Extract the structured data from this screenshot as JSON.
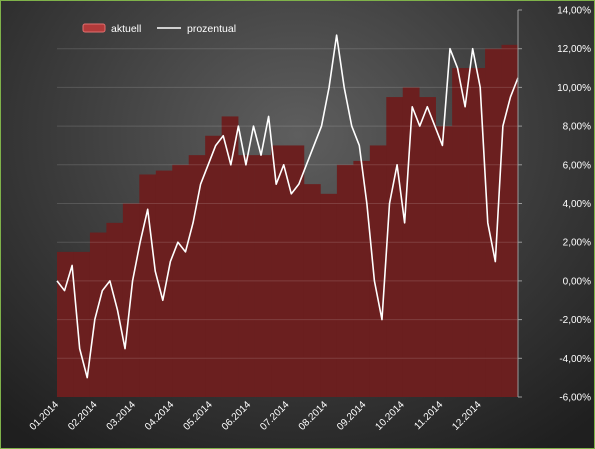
{
  "chart_data": {
    "type": "bar+line",
    "legend_placement": "top-left",
    "grid": true,
    "y_right": {
      "min": -6,
      "max": 14,
      "step": 2,
      "tick_labels": [
        "-6,00%",
        "-4,00%",
        "-2,00%",
        "0,00%",
        "2,00%",
        "4,00%",
        "6,00%",
        "8,00%",
        "10,00%",
        "12,00%",
        "14,00%"
      ]
    },
    "x_tick_labels": [
      "01.2014",
      "02.2014",
      "03.2014",
      "04.2014",
      "05.2014",
      "06.2014",
      "07.2014",
      "08.2014",
      "09.2014",
      "10.2014",
      "11.2014",
      "12.2014"
    ],
    "series": [
      {
        "name": "aktuell",
        "kind": "bar",
        "color": "#6b1f1f",
        "values": [
          1.5,
          1.5,
          2.5,
          3,
          4,
          5.5,
          5.7,
          6,
          6.5,
          7.5,
          8.5,
          6.5,
          6.5,
          7,
          7,
          5,
          4.5,
          6,
          6.2,
          7,
          9.5,
          10,
          9.5,
          8,
          11,
          11,
          12,
          12.2
        ]
      },
      {
        "name": "prozentual",
        "kind": "line",
        "color": "#ffffff",
        "values": [
          0,
          -0.5,
          0.8,
          -3.5,
          -5,
          -2,
          -0.5,
          0,
          -1.5,
          -3.5,
          0,
          2,
          3.7,
          0.5,
          -1,
          1,
          2,
          1.5,
          3,
          5,
          6,
          7,
          7.5,
          6,
          8,
          6,
          8,
          6.5,
          8.5,
          5,
          6,
          4.5,
          5,
          6,
          7,
          8,
          10,
          12.7,
          10,
          8,
          7,
          4,
          0,
          -2,
          4,
          6,
          3,
          9,
          8,
          9,
          8,
          7,
          12,
          11,
          9,
          12,
          10,
          3,
          1,
          8,
          9.5,
          10.5
        ]
      }
    ]
  }
}
